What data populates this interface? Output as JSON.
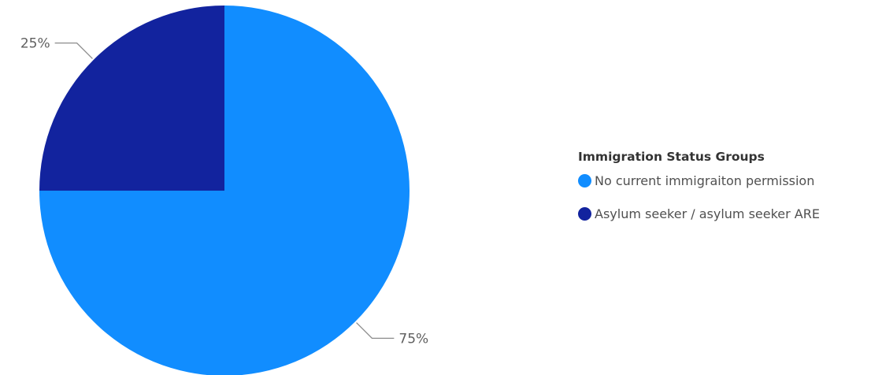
{
  "chart_data": {
    "type": "pie",
    "title": "",
    "categories": [
      "No current immigraiton permission",
      "Asylum seeker / asylum seeker ARE"
    ],
    "values": [
      75,
      25
    ],
    "data_labels": [
      "75%",
      "25%"
    ],
    "colors": [
      "#118dff",
      "#12239e"
    ],
    "legend": {
      "title": "Immigration Status Groups",
      "placement": "right",
      "items": [
        "No current immigraiton permission",
        "Asylum seeker / asylum seeker ARE"
      ]
    }
  }
}
